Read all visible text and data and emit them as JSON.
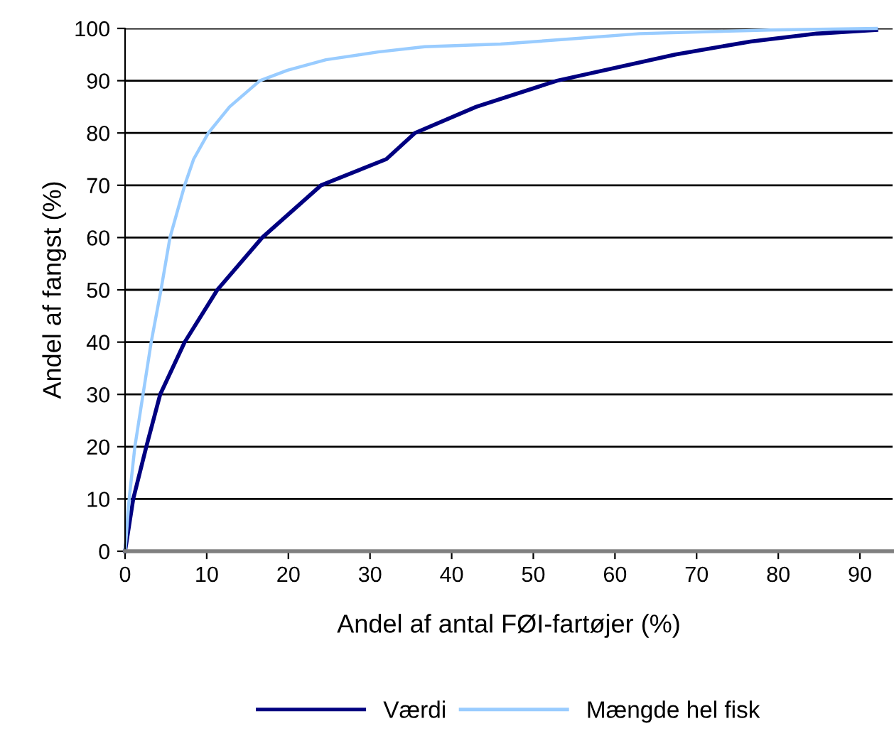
{
  "chart_data": {
    "type": "line",
    "xlabel": "Andel af antal FØI-fartøjer (%)",
    "ylabel": "Andel af fangst (%)",
    "xlim": [
      0,
      94
    ],
    "xticks": [
      0,
      10,
      20,
      30,
      40,
      50,
      60,
      70,
      80,
      90
    ],
    "ylim": [
      0,
      100
    ],
    "yticks": [
      0,
      10,
      20,
      30,
      40,
      50,
      60,
      70,
      80,
      90,
      100
    ],
    "grid": "y",
    "legend": "bottom",
    "marker": "none",
    "line_style": "solid",
    "series": [
      {
        "name": "Værdi",
        "color": "#000080",
        "x": [
          0,
          1.0,
          2.6,
          4.3,
          7.3,
          11.3,
          16.8,
          24,
          32,
          35.5,
          43,
          52.9,
          67.4,
          76.6,
          84.7,
          92
        ],
        "values": [
          0,
          10,
          20,
          30,
          40,
          50,
          60,
          70,
          75,
          80,
          85,
          90,
          95,
          97.5,
          99,
          99.7
        ]
      },
      {
        "name": "Mængde hel fisk",
        "color": "#99ccff",
        "x": [
          0,
          0.5,
          1.2,
          2.2,
          3.2,
          4.4,
          5.5,
          7.3,
          8.4,
          10.2,
          12.8,
          16.5,
          19.9,
          24.6,
          31,
          36.7,
          46,
          54.6,
          63,
          79,
          92
        ],
        "values": [
          0,
          10,
          20,
          30,
          40,
          50,
          60,
          70,
          75,
          80,
          85,
          90,
          92,
          94,
          95.5,
          96.5,
          97,
          98,
          99,
          99.7,
          100
        ]
      }
    ]
  }
}
